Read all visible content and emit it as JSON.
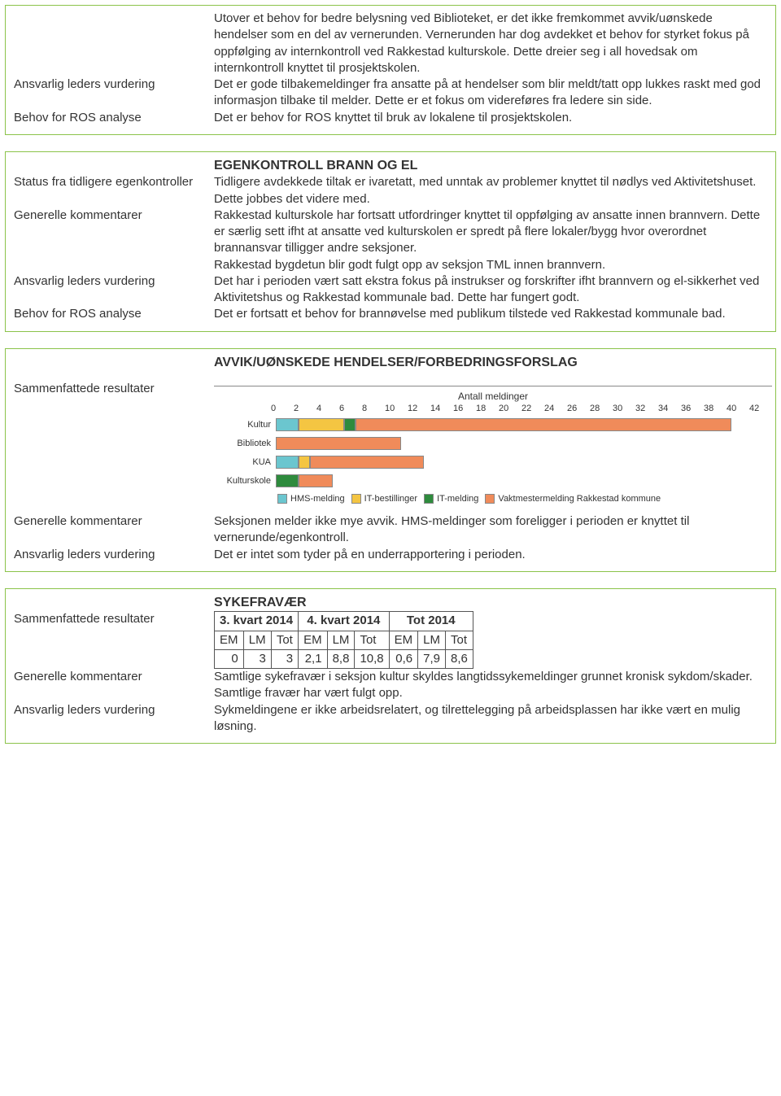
{
  "box1": {
    "intro": "Utover et behov for bedre belysning ved Biblioteket, er det ikke fremkommet avvik/uønskede hendelser som en del av vernerunden. Vernerunden har dog avdekket et behov for styrket fokus på oppfølging av internkontroll ved Rakkestad kulturskole. Dette dreier seg i all hovedsak om internkontroll knyttet til prosjektskolen.",
    "vurdering_label": "Ansvarlig leders vurdering",
    "vurdering_text": "Det er gode tilbakemeldinger fra ansatte på at hendelser som blir meldt/tatt opp lukkes raskt med god informasjon tilbake til melder. Dette er et fokus om videreføres fra ledere sin side.",
    "ros_label": "Behov for ROS analyse",
    "ros_text": "Det er behov for ROS knyttet til bruk av lokalene til prosjektskolen."
  },
  "box2": {
    "title": "EGENKONTROLL BRANN OG EL",
    "status_label": "Status fra tidligere egenkontroller",
    "status_text": "Tidligere avdekkede tiltak er ivaretatt, med unntak av problemer knyttet til nødlys ved Aktivitetshuset. Dette jobbes det videre med.",
    "gen_label": "Generelle kommentarer",
    "gen_text": "Rakkestad kulturskole har fortsatt utfordringer knyttet til oppfølging av ansatte innen brannvern. Dette er særlig sett ifht at ansatte ved kulturskolen er spredt på flere lokaler/bygg hvor overordnet brannansvar tilligger andre seksjoner.\nRakkestad bygdetun blir godt fulgt opp av seksjon TML innen brannvern.",
    "vurdering_label": "Ansvarlig leders vurdering",
    "vurdering_text": "Det har i perioden vært satt ekstra fokus på instrukser og forskrifter ifht brannvern og el-sikkerhet ved Aktivitetshus og Rakkestad kommunale bad. Dette har fungert godt.",
    "ros_label": "Behov for ROS analyse",
    "ros_text": "Det er fortsatt et behov for brannøvelse med publikum tilstede ved Rakkestad kommunale bad."
  },
  "box3": {
    "title": "AVVIK/UØNSKEDE HENDELSER/FORBEDRINGSFORSLAG",
    "sam_label": "Sammenfattede resultater",
    "gen_label": "Generelle kommentarer",
    "gen_text": "Seksjonen melder ikke mye avvik. HMS-meldinger som foreligger i perioden er knyttet til vernerunde/egenkontroll.",
    "vurdering_label": "Ansvarlig leders vurdering",
    "vurdering_text": "Det er intet som tyder på en underrapportering i perioden.",
    "chart": {
      "type": "stacked-horizontal-bar",
      "title": "Antall meldinger",
      "x_max": 42,
      "x_tick_step": 2,
      "x_ticks": [
        "0",
        "2",
        "4",
        "6",
        "8",
        "10",
        "12",
        "14",
        "16",
        "18",
        "20",
        "22",
        "24",
        "26",
        "28",
        "30",
        "32",
        "34",
        "36",
        "38",
        "40",
        "42"
      ],
      "categories": [
        "Kultur",
        "Bibliotek",
        "KUA",
        "Kulturskole"
      ],
      "series": [
        {
          "name": "HMS-melding",
          "color": "#6bc6cf"
        },
        {
          "name": "IT-bestillinger",
          "color": "#f4c542"
        },
        {
          "name": "IT-melding",
          "color": "#2e8b3d"
        },
        {
          "name": "Vaktmestermelding Rakkestad kommune",
          "color": "#f08b5a"
        }
      ],
      "data": [
        {
          "cat": "Kultur",
          "values": [
            2,
            4,
            1,
            33
          ]
        },
        {
          "cat": "Bibliotek",
          "values": [
            0,
            0,
            0,
            11
          ]
        },
        {
          "cat": "KUA",
          "values": [
            2,
            1,
            0,
            10
          ]
        },
        {
          "cat": "Kulturskole",
          "values": [
            0,
            0,
            2,
            3
          ]
        }
      ],
      "axis_color": "#555555",
      "background_color": "#ffffff",
      "label_fontsize": 11
    }
  },
  "box4": {
    "title": "SYKEFRAVÆR",
    "sam_label": "Sammenfattede resultater",
    "gen_label": "Generelle kommentarer",
    "gen_text": "Samtlige sykefravær i seksjon kultur skyldes langtidssykemeldinger grunnet kronisk sykdom/skader. Samtlige fravær har vært fulgt opp.",
    "vurdering_label": "Ansvarlig leders vurdering",
    "vurdering_text": "Sykmeldingene er ikke arbeidsrelatert, og tilrettelegging på arbeidsplassen har ikke vært en mulig løsning.",
    "table": {
      "groups": [
        "3. kvart 2014",
        "4. kvart 2014",
        "Tot 2014"
      ],
      "subcols": [
        "EM",
        "LM",
        "Tot"
      ],
      "row": [
        "0",
        "3",
        "3",
        "2,1",
        "8,8",
        "10,8",
        "0,6",
        "7,9",
        "8,6"
      ]
    }
  }
}
